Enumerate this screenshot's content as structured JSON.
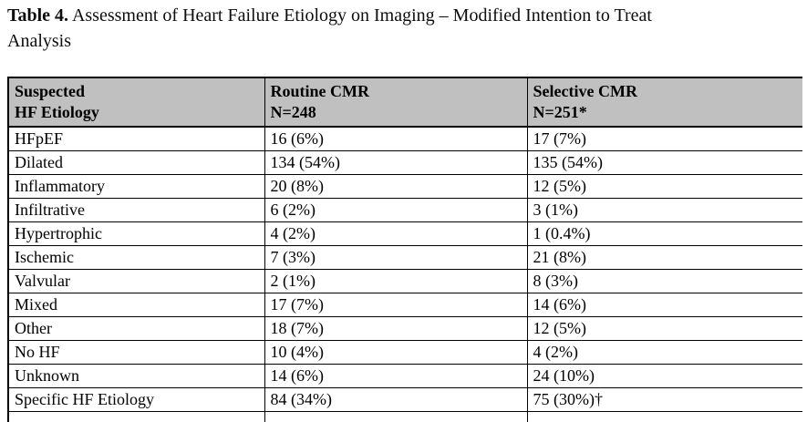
{
  "caption": {
    "label": "Table 4.",
    "line1_rest": " Assessment of Heart Failure Etiology on Imaging – Modified Intention to Treat",
    "line2": "Analysis"
  },
  "table": {
    "columns": [
      {
        "line1": "Suspected",
        "line2": "HF Etiology"
      },
      {
        "line1": "Routine CMR",
        "line2": "N=248"
      },
      {
        "line1": "Selective CMR",
        "line2": "N=251*"
      }
    ],
    "rows": [
      {
        "etiology": "HFpEF",
        "routine": "16 (6%)",
        "selective": "17 (7%)"
      },
      {
        "etiology": "Dilated",
        "routine": "134 (54%)",
        "selective": "135 (54%)"
      },
      {
        "etiology": "Inflammatory",
        "routine": "20 (8%)",
        "selective": "12 (5%)"
      },
      {
        "etiology": "Infiltrative",
        "routine": "6 (2%)",
        "selective": "3 (1%)"
      },
      {
        "etiology": "Hypertrophic",
        "routine": "4 (2%)",
        "selective": "1 (0.4%)"
      },
      {
        "etiology": "Ischemic",
        "routine": "7 (3%)",
        "selective": "21 (8%)"
      },
      {
        "etiology": "Valvular",
        "routine": "2 (1%)",
        "selective": "8 (3%)"
      },
      {
        "etiology": "Mixed",
        "routine": "17 (7%)",
        "selective": "14 (6%)"
      },
      {
        "etiology": "Other",
        "routine": "18 (7%)",
        "selective": "12 (5%)"
      },
      {
        "etiology": "No HF",
        "routine": "10 (4%)",
        "selective": "4 (2%)"
      },
      {
        "etiology": "Unknown",
        "routine": "14 (6%)",
        "selective": "24 (10%)"
      },
      {
        "etiology": "Specific HF Etiology",
        "routine": "84 (34%)",
        "selective": "75 (30%)†"
      }
    ],
    "footnote_markers": {
      "asterisk": "*",
      "dagger": "†"
    },
    "header_bg_color": "#c0c0c0",
    "border_color": "#000000"
  }
}
